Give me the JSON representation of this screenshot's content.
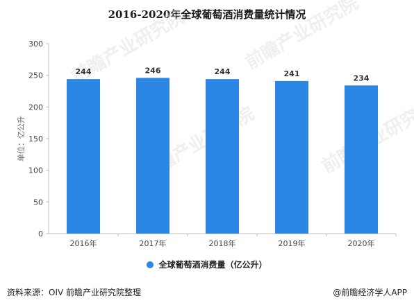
{
  "chart_data": {
    "type": "bar",
    "title": "2016-2020年全球葡萄酒消费量统计情况",
    "categories": [
      "2016年",
      "2017年",
      "2018年",
      "2019年",
      "2020年"
    ],
    "series": [
      {
        "name": "全球葡萄酒消费量（亿公升）",
        "values": [
          244,
          246,
          244,
          241,
          234
        ]
      }
    ],
    "data_labels": [
      "244",
      "246",
      "244",
      "241",
      "234"
    ],
    "ylabel": "单位：亿公升",
    "xlabel": "",
    "ylim": [
      0,
      300
    ],
    "yticks": [
      0,
      50,
      100,
      150,
      200,
      250,
      300
    ],
    "grid": false,
    "legend_position": "bottom",
    "bar_color": "#2b87e3"
  },
  "watermark": "前瞻产业研究院",
  "footer": {
    "source": "资料来源：OIV 前瞻产业研究院整理",
    "brand": "@前瞻经济学人APP"
  }
}
